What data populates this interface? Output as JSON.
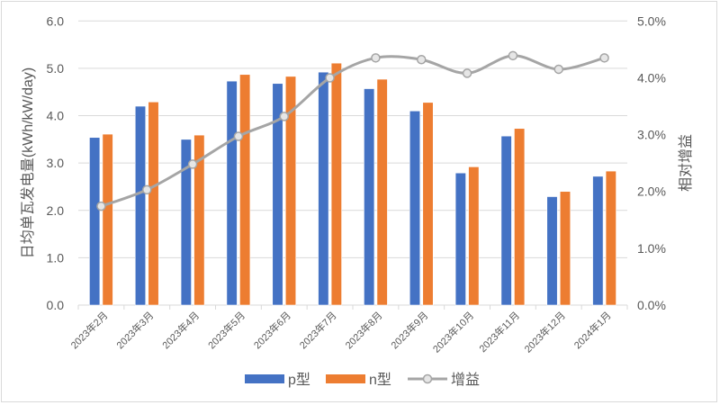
{
  "chart_data": {
    "type": "bar",
    "categories": [
      "2023年2月",
      "2023年3月",
      "2023年4月",
      "2023年5月",
      "2023年6月",
      "2023年7月",
      "2023年8月",
      "2023年9月",
      "2023年10月",
      "2023年11月",
      "2023年12月",
      "2024年1月"
    ],
    "series": [
      {
        "name": "p型",
        "type": "bar",
        "axis": "left",
        "color": "#4472C4",
        "values": [
          3.54,
          4.2,
          3.5,
          4.73,
          4.68,
          4.92,
          4.57,
          4.1,
          2.79,
          3.57,
          2.29,
          2.72
        ]
      },
      {
        "name": "n型",
        "type": "bar",
        "axis": "left",
        "color": "#ED7D31",
        "values": [
          3.61,
          4.29,
          3.59,
          4.87,
          4.83,
          5.11,
          4.77,
          4.28,
          2.92,
          3.73,
          2.4,
          2.83
        ]
      },
      {
        "name": "增益",
        "type": "line",
        "axis": "right",
        "color": "#A5A5A5",
        "values": [
          1.74,
          2.03,
          2.48,
          2.97,
          3.32,
          4.0,
          4.35,
          4.32,
          4.08,
          4.39,
          4.15,
          4.35
        ]
      }
    ],
    "ylabel": "日均单瓦发电量(kWh/kW/day)",
    "ylabel_right": "相对增益",
    "ylim": [
      0,
      6
    ],
    "ylim_right": [
      0,
      5
    ],
    "yticks": [
      "0.0",
      "1.0",
      "2.0",
      "3.0",
      "4.0",
      "5.0",
      "6.0"
    ],
    "yticks_right": [
      "0.0%",
      "1.0%",
      "2.0%",
      "3.0%",
      "4.0%",
      "5.0%"
    ],
    "grid": true,
    "legend": "bottom"
  }
}
